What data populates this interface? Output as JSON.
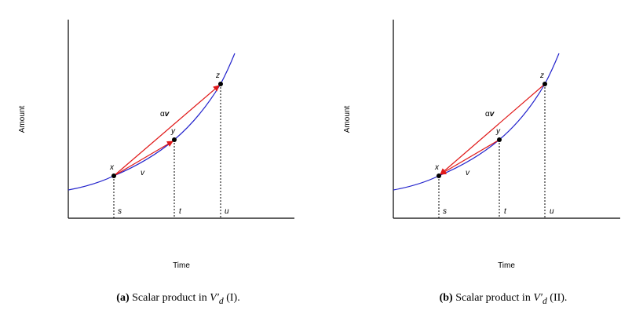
{
  "colors": {
    "curve": "#2222cc",
    "vector": "#e01818",
    "axis": "#000000"
  },
  "panels": [
    {
      "id": "a",
      "ylabel": "Amount",
      "xlabel": "Time",
      "points": {
        "x": "x",
        "y": "y",
        "z": "z"
      },
      "ticks": {
        "s": "s",
        "t": "t",
        "u": "u"
      },
      "v_label": "v",
      "alpha_v": {
        "alpha": "α",
        "v": "v"
      },
      "arrow_direction": "toward-z",
      "caption": {
        "tag": "(a)",
        "text": "Scalar product in",
        "symbol": "V",
        "prime": "′",
        "sub": "d",
        "suffix": "(I)."
      }
    },
    {
      "id": "b",
      "ylabel": "Amount",
      "xlabel": "Time",
      "points": {
        "x": "x",
        "y": "y",
        "z": "z"
      },
      "ticks": {
        "s": "s",
        "t": "t",
        "u": "u"
      },
      "v_label": "v",
      "alpha_v": {
        "alpha": "α",
        "v": "v"
      },
      "arrow_direction": "toward-x",
      "caption": {
        "tag": "(b)",
        "text": "Scalar product in",
        "symbol": "V",
        "prime": "′",
        "sub": "d",
        "suffix": "(II)."
      }
    }
  ]
}
